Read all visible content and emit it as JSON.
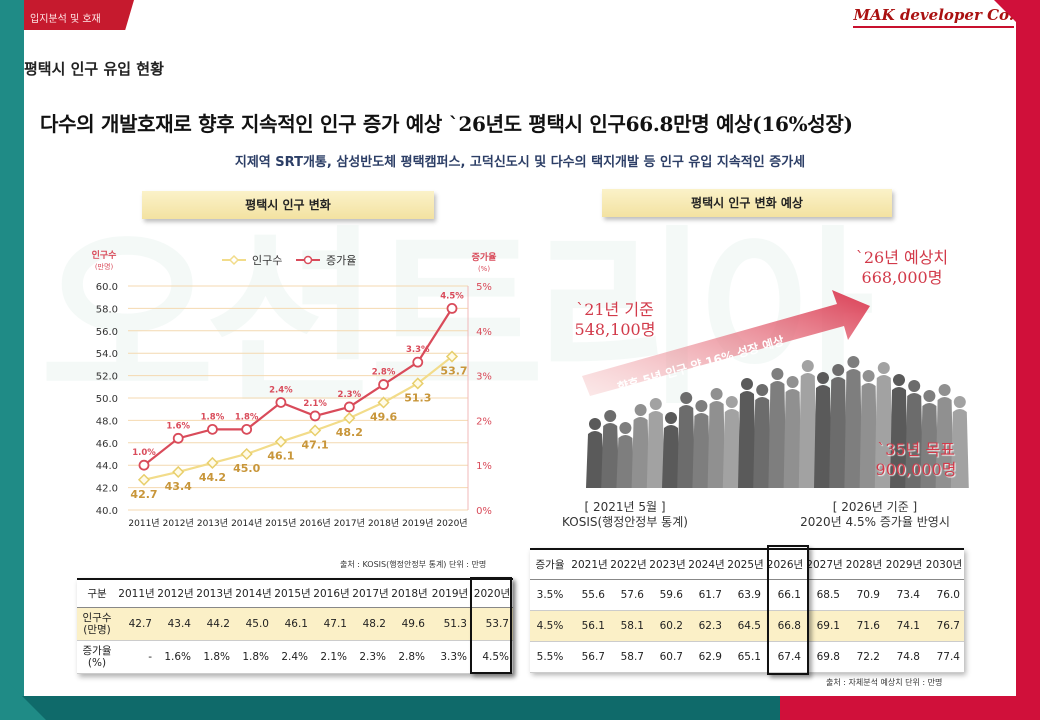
{
  "header": {
    "top_strip": "입지분석 및 호재",
    "brand": "MAK developer Co.",
    "section_title": "평택시 인구 유입 현황",
    "headline": "다수의 개발호재로 향후 지속적인 인구 증가 예상 `26년도 평택시 인구66.8만명 예상(16%성장)",
    "subhead": "지제역 SRT개통, 삼성반도체 평택캠퍼스, 고덕신도시 및 다수의 택지개발 등 인구 유입 지속적인 증가세"
  },
  "left_panel": {
    "title": "평택시 인구 변화",
    "source": "출처 : KOSIS(행정안정부 통계)    단위 : 만명"
  },
  "chart_data": {
    "type": "line",
    "title": "평택시 인구 변화",
    "x": [
      "2011년",
      "2012년",
      "2013년",
      "2014년",
      "2015년",
      "2016년",
      "2017년",
      "2018년",
      "2019년",
      "2020년"
    ],
    "series": [
      {
        "name": "인구수",
        "axis": "left",
        "color": "#f2dc8a",
        "values": [
          42.7,
          43.4,
          44.2,
          45.0,
          46.1,
          47.1,
          48.2,
          49.6,
          51.3,
          53.7
        ],
        "labels": [
          "42.7",
          "43.4",
          "44.2",
          "45.0",
          "46.1",
          "47.1",
          "48.2",
          "49.6",
          "51.3",
          "53.7"
        ]
      },
      {
        "name": "증가율",
        "axis": "right",
        "color": "#d94b5a",
        "values": [
          1.0,
          1.6,
          1.8,
          1.8,
          2.4,
          2.1,
          2.3,
          2.8,
          3.3,
          4.5
        ],
        "labels": [
          "1.0%",
          "1.6%",
          "1.8%",
          "1.8%",
          "2.4%",
          "2.1%",
          "2.3%",
          "2.8%",
          "3.3%",
          "4.5%"
        ]
      }
    ],
    "ylabel": "인구수",
    "ylabel_unit": "(만명)",
    "y2label": "증가율",
    "y2label_unit": "(%)",
    "ylim": [
      40.0,
      60.0
    ],
    "yticks": [
      "40.0",
      "42.0",
      "44.0",
      "46.0",
      "48.0",
      "50.0",
      "52.0",
      "54.0",
      "56.0",
      "58.0",
      "60.0"
    ],
    "y2lim": [
      0,
      5
    ],
    "y2ticks": [
      "0%",
      "1%",
      "2%",
      "3%",
      "4%",
      "5%"
    ],
    "grid": true,
    "legend": "top-left"
  },
  "right_panel": {
    "title": "평택시 인구 변화 예상",
    "label_2021": [
      "`21년 기준",
      "548,100명"
    ],
    "label_2026": [
      "`26년 예상치",
      "668,000명"
    ],
    "label_2035": [
      "`35년 목표",
      "900,000명"
    ],
    "arrow_text": "향후 5년 인구 약 16% 성장 예상",
    "caption_left": [
      "[ 2021년 5월 ]",
      "KOSIS(행정안정부 통계)"
    ],
    "caption_right": [
      "[ 2026년 기준 ]",
      "2020년 4.5% 증가율 반영시"
    ],
    "source": "출처 : 자체분석 예상치    단위 : 만명"
  },
  "left_table": {
    "headers": [
      "구분",
      "2011년",
      "2012년",
      "2013년",
      "2014년",
      "2015년",
      "2016년",
      "2017년",
      "2018년",
      "2019년",
      "2020년"
    ],
    "rows": [
      [
        "인구수\n(만명)",
        "42.7",
        "43.4",
        "44.2",
        "45.0",
        "46.1",
        "47.1",
        "48.2",
        "49.6",
        "51.3",
        "53.7"
      ],
      [
        "증가율\n(%)",
        "-",
        "1.6%",
        "1.8%",
        "1.8%",
        "2.4%",
        "2.1%",
        "2.3%",
        "2.8%",
        "3.3%",
        "4.5%"
      ]
    ]
  },
  "right_table": {
    "headers": [
      "증가율",
      "2021년",
      "2022년",
      "2023년",
      "2024년",
      "2025년",
      "2026년",
      "2027년",
      "2028년",
      "2029년",
      "2030년"
    ],
    "rows": [
      [
        "3.5%",
        "55.6",
        "57.6",
        "59.6",
        "61.7",
        "63.9",
        "66.1",
        "68.5",
        "70.9",
        "73.4",
        "76.0"
      ],
      [
        "4.5%",
        "56.1",
        "58.1",
        "60.2",
        "62.3",
        "64.5",
        "66.8",
        "69.1",
        "71.6",
        "74.1",
        "76.7"
      ],
      [
        "5.5%",
        "56.7",
        "58.7",
        "60.7",
        "62.9",
        "65.1",
        "67.4",
        "69.8",
        "72.2",
        "74.8",
        "77.4"
      ]
    ]
  },
  "colors": {
    "accent_red": "#d0103a",
    "accent_teal": "#1f8b86",
    "highlight": "#fbf0c7"
  }
}
